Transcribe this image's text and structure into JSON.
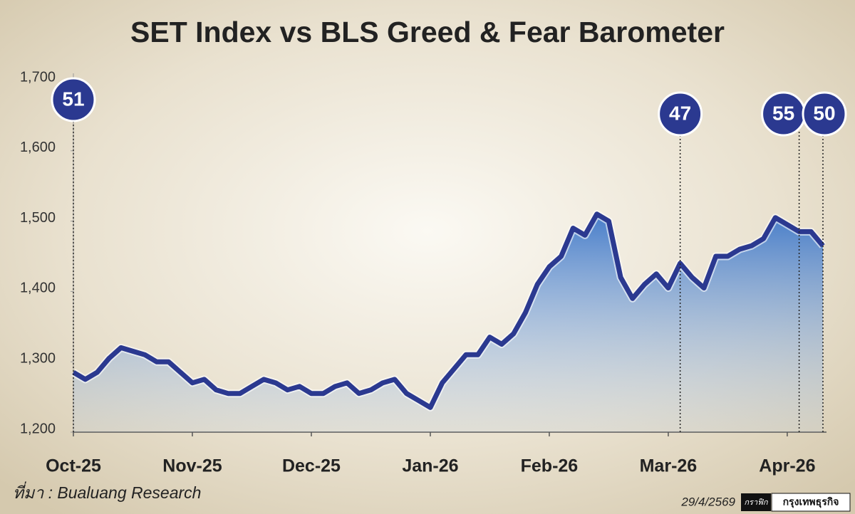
{
  "chart_data": {
    "type": "line",
    "title": "SET Index vs BLS Greed & Fear Barometer",
    "categories": [
      "Oct-25",
      null,
      null,
      null,
      null,
      null,
      null,
      null,
      null,
      null,
      "Nov-25",
      null,
      null,
      null,
      null,
      null,
      null,
      null,
      null,
      null,
      "Dec-25",
      null,
      null,
      null,
      null,
      null,
      null,
      null,
      null,
      null,
      "Jan-26",
      null,
      null,
      null,
      null,
      null,
      null,
      null,
      null,
      null,
      "Feb-26",
      null,
      null,
      null,
      null,
      null,
      null,
      null,
      null,
      null,
      "Mar-26",
      null,
      null,
      null,
      null,
      null,
      null,
      null,
      null,
      null,
      "Apr-26",
      null,
      null,
      null
    ],
    "series": [
      {
        "name": "SET Index",
        "color": "#2b3990",
        "values": [
          1285,
          1275,
          1285,
          1305,
          1320,
          1315,
          1310,
          1300,
          1300,
          1285,
          1270,
          1275,
          1260,
          1255,
          1255,
          1265,
          1275,
          1270,
          1260,
          1265,
          1255,
          1255,
          1265,
          1270,
          1255,
          1260,
          1270,
          1275,
          1255,
          1245,
          1235,
          1270,
          1290,
          1310,
          1310,
          1335,
          1325,
          1340,
          1370,
          1410,
          1435,
          1450,
          1490,
          1480,
          1510,
          1500,
          1420,
          1390,
          1410,
          1425,
          1405,
          1440,
          1420,
          1405,
          1450,
          1450,
          1460,
          1465,
          1475,
          1505,
          1495,
          1485,
          1485,
          1465
        ]
      }
    ],
    "ylim": [
      1200,
      1700
    ],
    "yticks": [
      {
        "value": 1200,
        "label": "1,200"
      },
      {
        "value": 1300,
        "label": "1,300"
      },
      {
        "value": 1400,
        "label": "1,400"
      },
      {
        "value": 1500,
        "label": "1,500"
      },
      {
        "value": 1600,
        "label": "1,600"
      },
      {
        "value": 1700,
        "label": "1,700"
      }
    ],
    "grid": false,
    "annotations": [
      {
        "text": 51
      },
      {
        "text": 47
      },
      {
        "text": 55
      },
      {
        "text": 50
      }
    ],
    "source": "ที่มา : Bualuang Research",
    "date": "29/4/2569",
    "credit": [
      "กราฟิก",
      "กรุงเทพธุรกิจ"
    ]
  }
}
